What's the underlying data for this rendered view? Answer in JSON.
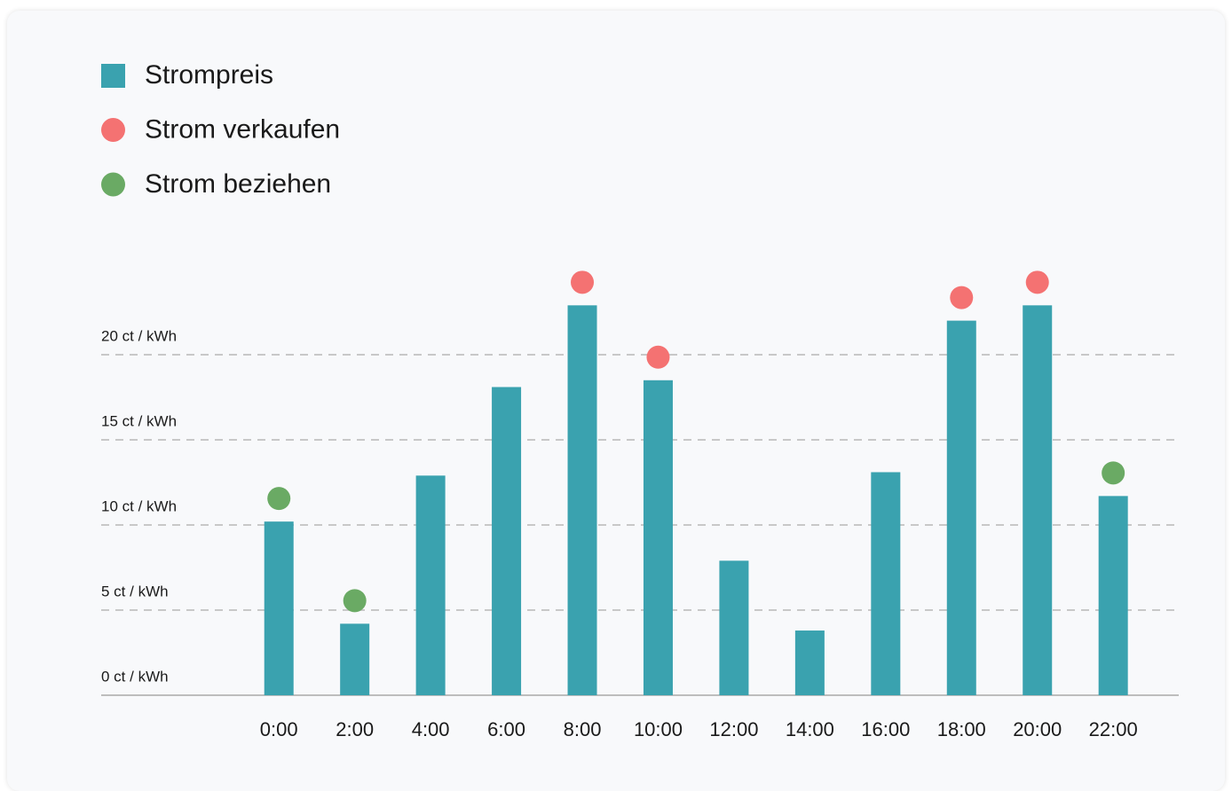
{
  "chart_data": {
    "type": "bar",
    "categories": [
      "0:00",
      "2:00",
      "4:00",
      "6:00",
      "8:00",
      "10:00",
      "12:00",
      "14:00",
      "16:00",
      "18:00",
      "20:00",
      "22:00"
    ],
    "series": [
      {
        "name": "Strompreis",
        "color": "#3aa2af",
        "values": [
          10.2,
          4.2,
          12.9,
          18.1,
          22.9,
          18.5,
          7.9,
          3.8,
          13.1,
          22.0,
          22.9,
          11.7
        ]
      },
      {
        "name": "Strom verkaufen",
        "color": "#f47272",
        "values": [
          null,
          null,
          null,
          null,
          22.9,
          18.5,
          null,
          null,
          null,
          22.0,
          22.9,
          null
        ]
      },
      {
        "name": "Strom beziehen",
        "color": "#6aaa64",
        "values": [
          10.2,
          4.2,
          null,
          null,
          null,
          null,
          null,
          null,
          null,
          null,
          null,
          11.7
        ]
      }
    ],
    "ylim": [
      0,
      25
    ],
    "yticks": [
      {
        "value": 0,
        "label": "0 ct / kWh"
      },
      {
        "value": 5,
        "label": "5 ct / kWh"
      },
      {
        "value": 10,
        "label": "10 ct / kWh"
      },
      {
        "value": 15,
        "label": "15 ct / kWh"
      },
      {
        "value": 20,
        "label": "20 ct / kWh"
      }
    ],
    "grid": true
  }
}
